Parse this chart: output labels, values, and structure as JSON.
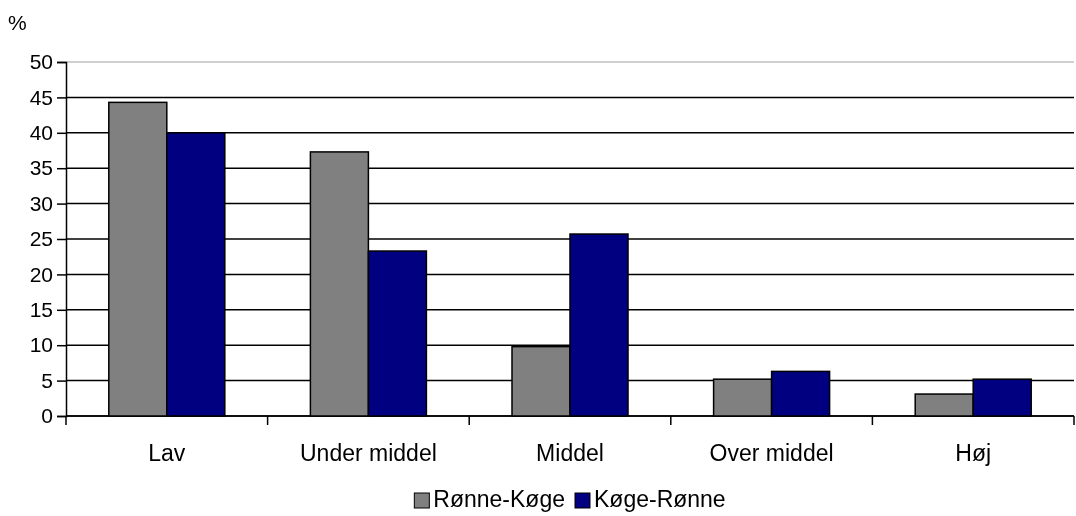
{
  "chart_data": {
    "type": "bar",
    "ylabel": "%",
    "categories": [
      "Lav",
      "Under middel",
      "Middel",
      "Over middel",
      "Høj"
    ],
    "series": [
      {
        "name": "Rønne-Køge",
        "color": "#808080",
        "values": [
          44.3,
          37.3,
          9.8,
          5.2,
          3.1
        ]
      },
      {
        "name": "Køge-Rønne",
        "color": "#000080",
        "values": [
          40,
          23.3,
          25.7,
          6.3,
          5.2
        ]
      }
    ],
    "ylim": [
      0,
      50
    ],
    "yticks": [
      0,
      5,
      10,
      15,
      20,
      25,
      30,
      35,
      40,
      45,
      50
    ],
    "grid": "y",
    "legend": "bottom"
  }
}
